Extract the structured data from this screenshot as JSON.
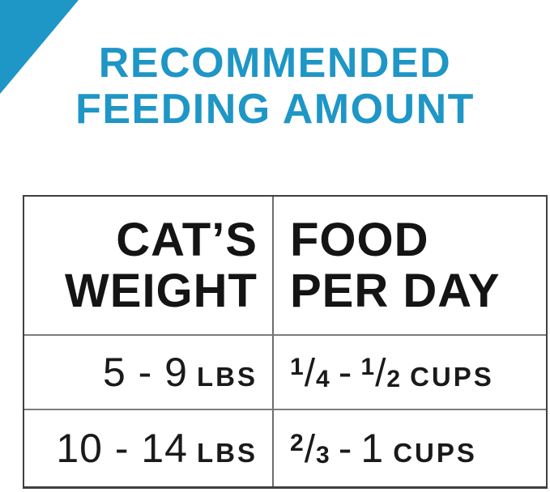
{
  "title": {
    "line1": "RECOMMENDED",
    "line2": "FEEDING AMOUNT"
  },
  "colors": {
    "accent_blue": "#1E96C6",
    "text_black": "#171717",
    "table_border_outer": "#3f3f3f",
    "table_border_inner": "#7c7c7c"
  },
  "decor": {
    "corner_triangle": "blue-triangle-top-left"
  },
  "fraction_slash": "/",
  "table": {
    "headers": [
      {
        "line1": "CAT’S",
        "line2": "WEIGHT"
      },
      {
        "line1": "FOOD",
        "line2": "PER DAY"
      }
    ],
    "rows": [
      {
        "weight_value": "5 - 9",
        "weight_unit": "LBS",
        "food": {
          "frac1_num": "1",
          "frac1_den": "4",
          "separator": "-",
          "frac2_num": "1",
          "frac2_den": "2",
          "unit": "CUPS"
        }
      },
      {
        "weight_value": "10 - 14",
        "weight_unit": "LBS",
        "food": {
          "frac1_num": "2",
          "frac1_den": "3",
          "separator": "-",
          "whole2": "1",
          "unit": "CUPS"
        }
      }
    ]
  },
  "chart_data": {
    "type": "table",
    "title": "RECOMMENDED FEEDING AMOUNT",
    "columns": [
      "CAT'S WEIGHT",
      "FOOD PER DAY"
    ],
    "rows": [
      [
        "5 - 9 LBS",
        "1/4 - 1/2 CUPS"
      ],
      [
        "10 - 14 LBS",
        "2/3 - 1 CUPS"
      ]
    ]
  }
}
